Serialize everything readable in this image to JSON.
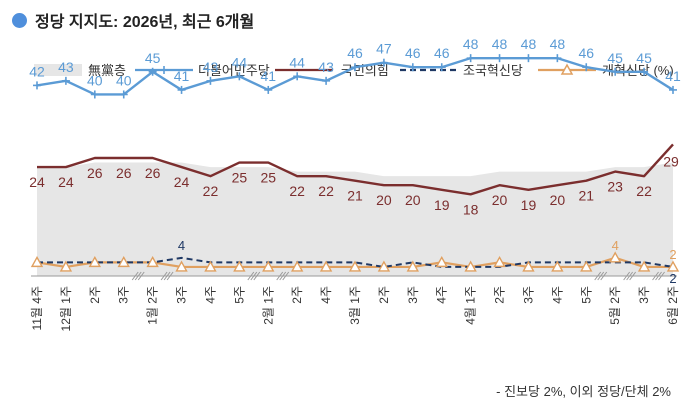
{
  "title": "정당 지지도: 2026년, 최근 6개월",
  "footnote": "- 진보당 2%, 이외 정당/단체 2%",
  "colors": {
    "title_dot": "#4f8fdc",
    "undecided_area": "#e6e6e6",
    "minju": "#5b9bd5",
    "ppp": "#7b2e2e",
    "rebuild": "#1f3864",
    "reform": "#e0a060"
  },
  "chart_data": {
    "type": "line",
    "title": "정당 지지도: 2026년, 최근 6개월",
    "legend_position": "top",
    "x": [
      "11월 4주",
      "12월 1주",
      "2주",
      "3주",
      "1월 2주",
      "3주",
      "4주",
      "5주",
      "2월 1주",
      "2주",
      "4주",
      "3월 1주",
      "2주",
      "3주",
      "4주",
      "4월 1주",
      "2주",
      "3주",
      "4주",
      "5주",
      "5월 2주",
      "3주",
      "6월 2주"
    ],
    "series": [
      {
        "name": "無黨층",
        "type": "area",
        "values": [
          24,
          24,
          25,
          25,
          25,
          25,
          24,
          24,
          24,
          23,
          23,
          23,
          22,
          22,
          22,
          22,
          23,
          23,
          23,
          23,
          24,
          24,
          25
        ]
      },
      {
        "name": "더불어민주당",
        "values": [
          42,
          43,
          40,
          40,
          45,
          41,
          43,
          44,
          41,
          44,
          43,
          46,
          47,
          46,
          46,
          48,
          48,
          48,
          48,
          46,
          45,
          45,
          41
        ]
      },
      {
        "name": "국민의힘",
        "values": [
          24,
          24,
          26,
          26,
          26,
          24,
          22,
          25,
          25,
          22,
          22,
          21,
          20,
          20,
          19,
          18,
          20,
          19,
          20,
          21,
          23,
          22,
          29
        ]
      },
      {
        "name": "조국혁신당",
        "values": [
          3,
          3,
          3,
          3,
          3,
          4,
          3,
          3,
          3,
          3,
          3,
          3,
          2,
          3,
          2,
          2,
          2,
          3,
          3,
          3,
          3,
          3,
          2
        ]
      },
      {
        "name": "개혁신당 (%)",
        "values": [
          3,
          2,
          3,
          3,
          3,
          2,
          2,
          2,
          2,
          2,
          2,
          2,
          2,
          2,
          3,
          2,
          3,
          2,
          2,
          2,
          4,
          2,
          2
        ]
      }
    ],
    "labels": {
      "minju": [
        "42",
        "43",
        "40",
        "40",
        "45",
        "41",
        "43",
        "44",
        "41",
        "44",
        "43",
        "46",
        "47",
        "46",
        "46",
        "48",
        "48",
        "48",
        "48",
        "46",
        "45",
        "45",
        "41"
      ],
      "ppp": [
        "24",
        "24",
        "26",
        "26",
        "26",
        "24",
        "22",
        "25",
        "25",
        "22",
        "22",
        "21",
        "20",
        "20",
        "19",
        "18",
        "20",
        "19",
        "20",
        "21",
        "23",
        "22",
        "29"
      ],
      "extra": [
        {
          "series": "조국혁신당",
          "index": 5,
          "text": "4"
        },
        {
          "series": "개혁신당 (%)",
          "index": 20,
          "text": "4"
        },
        {
          "series": "개혁신당 (%)",
          "index": 22,
          "text": "2"
        },
        {
          "series": "조국혁신당",
          "index": 22,
          "text": "2"
        }
      ]
    },
    "axis_breaks_after": [
      3,
      4,
      7,
      8,
      19,
      20,
      21
    ],
    "ylim": [
      0,
      52
    ],
    "grid": false
  }
}
